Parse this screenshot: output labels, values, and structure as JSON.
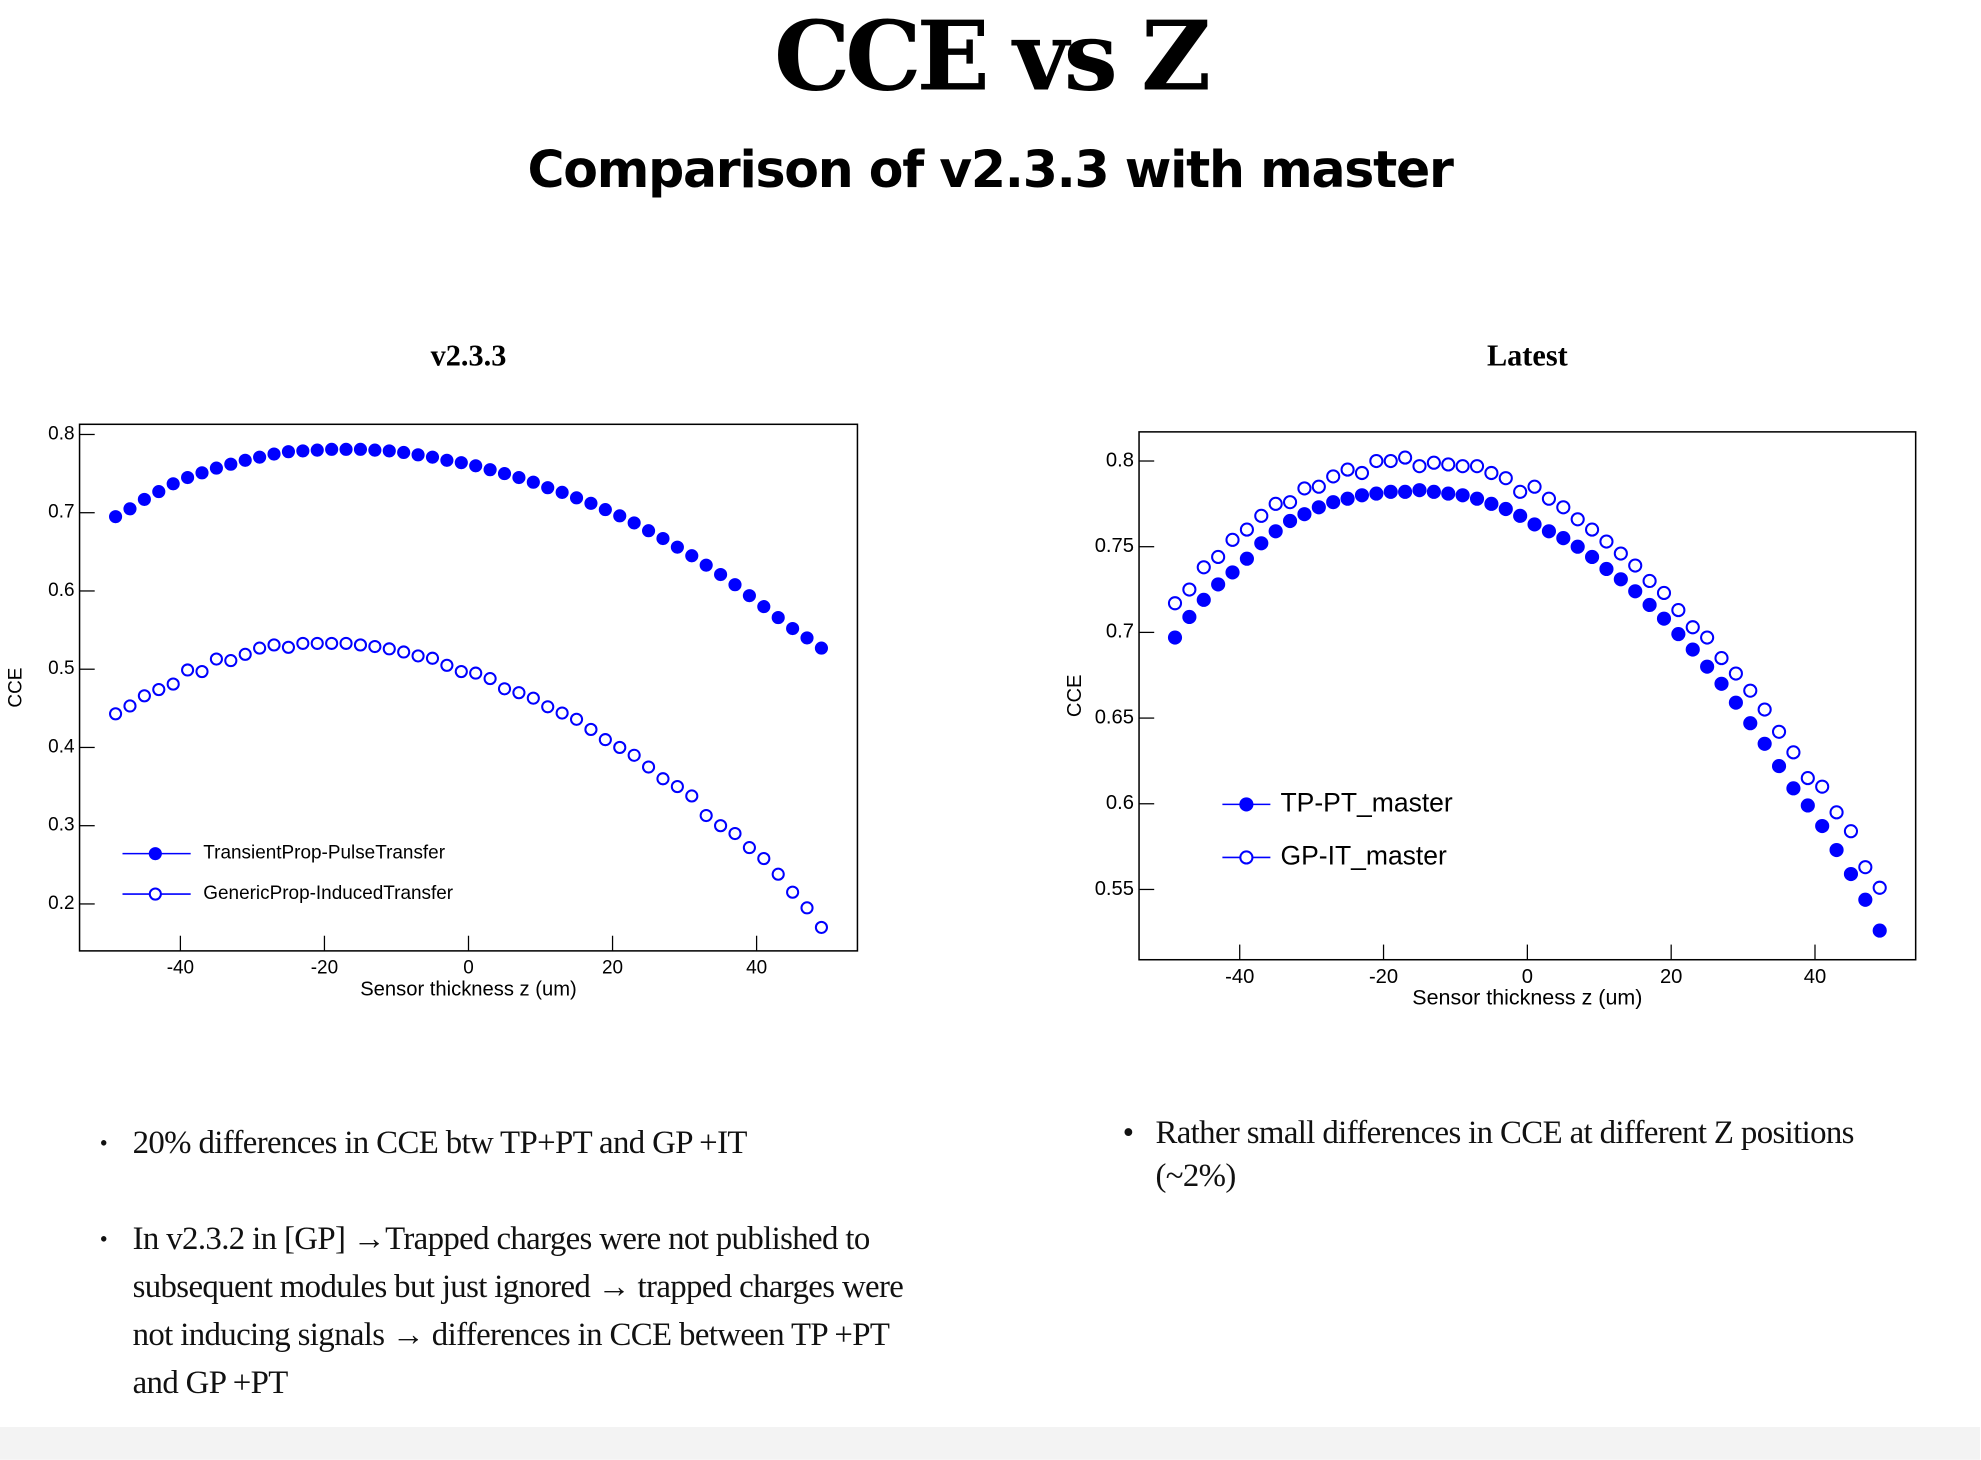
{
  "header": {
    "title": "CCE vs Z",
    "subtitle": "Comparison of v2.3.3 with master"
  },
  "chart_data": [
    {
      "type": "scatter",
      "title": "v2.3.3",
      "xlabel": "Sensor thickness z (um)",
      "ylabel": "CCE",
      "x": [
        -49,
        -47,
        -45,
        -43,
        -41,
        -39,
        -37,
        -35,
        -33,
        -31,
        -29,
        -27,
        -25,
        -23,
        -21,
        -19,
        -17,
        -15,
        -13,
        -11,
        -9,
        -7,
        -5,
        -3,
        -1,
        1,
        3,
        5,
        7,
        9,
        11,
        13,
        15,
        17,
        19,
        21,
        23,
        25,
        27,
        29,
        31,
        33,
        35,
        37,
        39,
        41,
        43,
        45,
        47,
        49
      ],
      "series": [
        {
          "name": "TransientProp-PulseTransfer",
          "color": "#0000ff",
          "marker": "filled",
          "values": [
            0.695,
            0.705,
            0.717,
            0.727,
            0.737,
            0.745,
            0.751,
            0.757,
            0.762,
            0.767,
            0.771,
            0.775,
            0.778,
            0.779,
            0.78,
            0.781,
            0.781,
            0.781,
            0.78,
            0.779,
            0.777,
            0.774,
            0.771,
            0.767,
            0.764,
            0.76,
            0.755,
            0.75,
            0.745,
            0.739,
            0.732,
            0.726,
            0.719,
            0.712,
            0.704,
            0.696,
            0.687,
            0.677,
            0.667,
            0.656,
            0.645,
            0.633,
            0.621,
            0.608,
            0.594,
            0.58,
            0.566,
            0.552,
            0.54,
            0.527
          ]
        },
        {
          "name": "GenericProp-InducedTransfer",
          "color": "#0000ff",
          "marker": "open",
          "values": [
            0.443,
            0.453,
            0.466,
            0.474,
            0.481,
            0.499,
            0.497,
            0.513,
            0.511,
            0.519,
            0.527,
            0.531,
            0.528,
            0.533,
            0.533,
            0.533,
            0.533,
            0.531,
            0.529,
            0.526,
            0.522,
            0.517,
            0.514,
            0.505,
            0.497,
            0.495,
            0.488,
            0.475,
            0.47,
            0.463,
            0.452,
            0.444,
            0.436,
            0.423,
            0.41,
            0.4,
            0.39,
            0.375,
            0.36,
            0.35,
            0.338,
            0.313,
            0.3,
            0.29,
            0.272,
            0.258,
            0.238,
            0.215,
            0.195,
            0.17
          ]
        }
      ],
      "xlim": [
        -54,
        54
      ],
      "xticks": [
        -40,
        -20,
        0,
        20,
        40
      ],
      "ylim": [
        0.14,
        0.813
      ],
      "yticks": [
        0.2,
        0.3,
        0.4,
        0.5,
        0.6,
        0.7,
        0.8
      ],
      "legend_position": "lower left"
    },
    {
      "type": "scatter",
      "title": "Latest",
      "xlabel": "Sensor thickness z (um)",
      "ylabel": "CCE",
      "x": [
        -49,
        -47,
        -45,
        -43,
        -41,
        -39,
        -37,
        -35,
        -33,
        -31,
        -29,
        -27,
        -25,
        -23,
        -21,
        -19,
        -17,
        -15,
        -13,
        -11,
        -9,
        -7,
        -5,
        -3,
        -1,
        1,
        3,
        5,
        7,
        9,
        11,
        13,
        15,
        17,
        19,
        21,
        23,
        25,
        27,
        29,
        31,
        33,
        35,
        37,
        39,
        41,
        43,
        45,
        47,
        49
      ],
      "series": [
        {
          "name": "TP-PT_master",
          "color": "#0000ff",
          "marker": "filled",
          "values": [
            0.697,
            0.709,
            0.719,
            0.728,
            0.735,
            0.743,
            0.752,
            0.759,
            0.765,
            0.769,
            0.773,
            0.776,
            0.778,
            0.78,
            0.781,
            0.782,
            0.782,
            0.783,
            0.782,
            0.781,
            0.78,
            0.778,
            0.775,
            0.772,
            0.768,
            0.763,
            0.759,
            0.755,
            0.75,
            0.744,
            0.737,
            0.731,
            0.724,
            0.716,
            0.708,
            0.699,
            0.69,
            0.68,
            0.67,
            0.659,
            0.647,
            0.635,
            0.622,
            0.609,
            0.599,
            0.587,
            0.573,
            0.559,
            0.544,
            0.526
          ]
        },
        {
          "name": "GP-IT_master",
          "color": "#0000ff",
          "marker": "open",
          "values": [
            0.717,
            0.725,
            0.738,
            0.744,
            0.754,
            0.76,
            0.768,
            0.775,
            0.776,
            0.784,
            0.785,
            0.791,
            0.795,
            0.793,
            0.8,
            0.8,
            0.802,
            0.797,
            0.799,
            0.798,
            0.797,
            0.797,
            0.793,
            0.79,
            0.782,
            0.785,
            0.778,
            0.773,
            0.766,
            0.76,
            0.753,
            0.746,
            0.739,
            0.73,
            0.723,
            0.713,
            0.703,
            0.697,
            0.685,
            0.676,
            0.666,
            0.655,
            0.642,
            0.63,
            0.615,
            0.61,
            0.595,
            0.584,
            0.563,
            0.551
          ]
        }
      ],
      "xlim": [
        -54,
        54
      ],
      "xticks": [
        -40,
        -20,
        0,
        20,
        40
      ],
      "ylim": [
        0.509,
        0.817
      ],
      "yticks": [
        0.55,
        0.6,
        0.65,
        0.7,
        0.75,
        0.8
      ],
      "legend_position": "center left"
    }
  ],
  "notes": {
    "left": [
      "20% differences in CCE btw TP+PT and GP +IT",
      "In v2.3.2 in [GP] →Trapped charges were not published to subsequent modules but just ignored → trapped charges were not inducing signals → differences in CCE between TP +PT and GP +PT"
    ],
    "right": [
      "Rather small differences in CCE at different Z positions (~2%)"
    ]
  }
}
